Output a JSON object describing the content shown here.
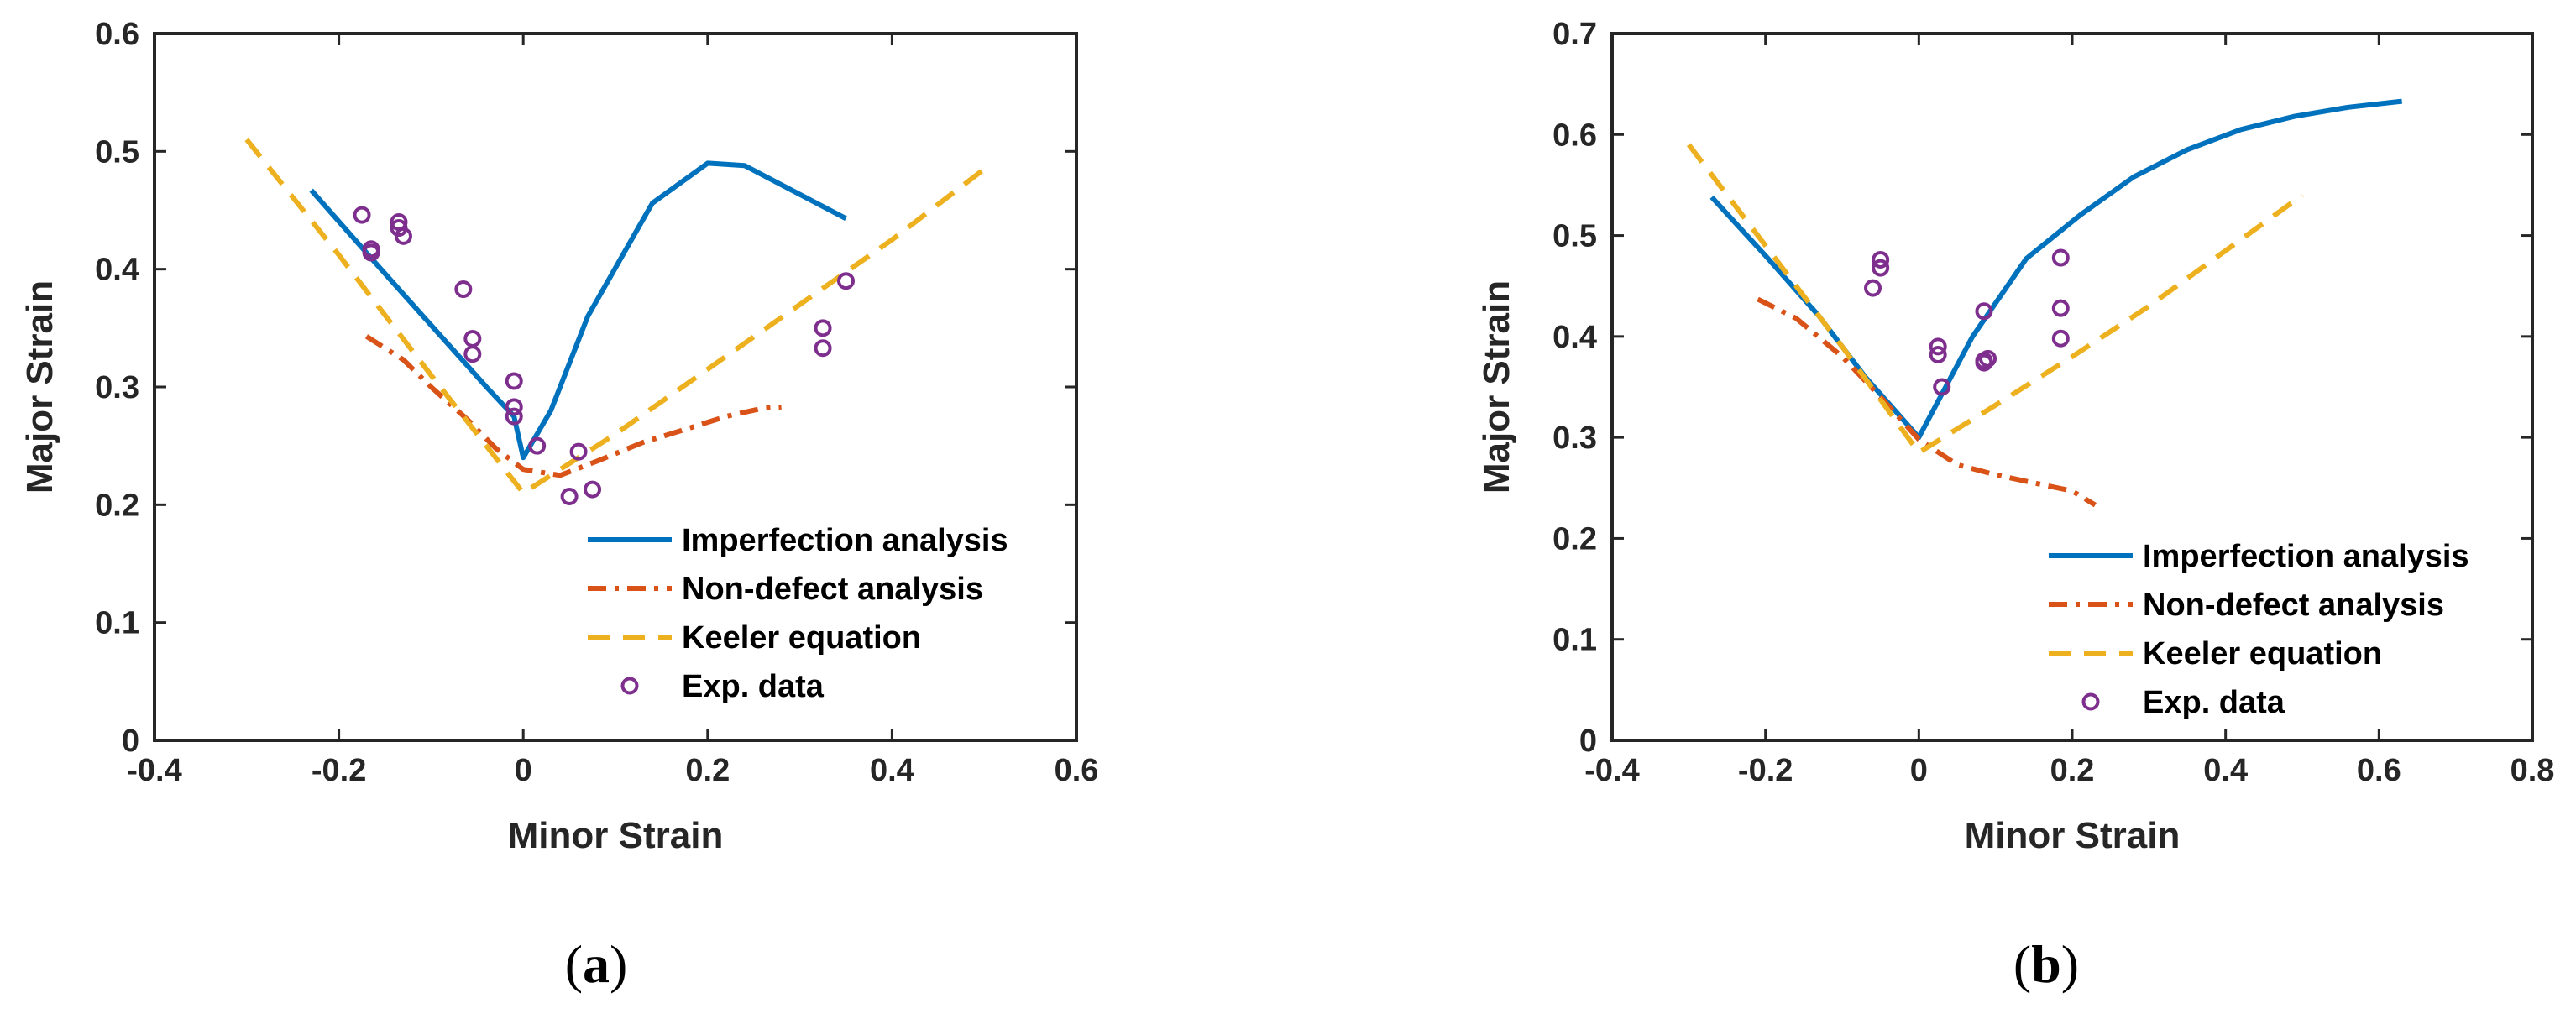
{
  "colors": {
    "imperfection": "#0072BD",
    "non_defect": "#D95319",
    "keeler": "#EDB120",
    "exp": "#7E2F8E",
    "axis": "#262626"
  },
  "chart_data": [
    {
      "type": "line",
      "panel_label": "a",
      "xlabel": "Minor Strain",
      "ylabel": "Major Strain",
      "xlim": [
        -0.4,
        0.6
      ],
      "ylim": [
        0,
        0.6
      ],
      "xticks": [
        -0.4,
        -0.2,
        0,
        0.2,
        0.4,
        0.6
      ],
      "xtick_labels": [
        "-0.4",
        "-0.2",
        "0",
        "0.2",
        "0.4",
        "0.6"
      ],
      "yticks": [
        0,
        0.1,
        0.2,
        0.3,
        0.4,
        0.5,
        0.6
      ],
      "ytick_labels": [
        "0",
        "0.1",
        "0.2",
        "0.3",
        "0.4",
        "0.5",
        "0.6"
      ],
      "legend_position": "bottom-right",
      "series": [
        {
          "name": "Imperfection analysis",
          "style": "solid",
          "color_key": "imperfection",
          "x": [
            -0.23,
            -0.16,
            -0.12,
            -0.08,
            -0.04,
            -0.01,
            0.0,
            0.03,
            0.07,
            0.14,
            0.2,
            0.24,
            0.35
          ],
          "y": [
            0.467,
            0.405,
            0.37,
            0.335,
            0.3,
            0.275,
            0.24,
            0.28,
            0.36,
            0.456,
            0.49,
            0.488,
            0.443
          ]
        },
        {
          "name": "Non-defect analysis",
          "style": "dashdot",
          "color_key": "non_defect",
          "x": [
            -0.17,
            -0.13,
            -0.1,
            -0.06,
            -0.03,
            0.0,
            0.04,
            0.08,
            0.13,
            0.18,
            0.22,
            0.26,
            0.28
          ],
          "y": [
            0.343,
            0.323,
            0.3,
            0.272,
            0.248,
            0.23,
            0.225,
            0.237,
            0.253,
            0.265,
            0.275,
            0.282,
            0.283
          ]
        },
        {
          "name": "Keeler equation",
          "style": "dashed",
          "color_key": "keeler",
          "x": [
            -0.3,
            -0.2,
            -0.1,
            0.0,
            0.1,
            0.2,
            0.3,
            0.4,
            0.5
          ],
          "y": [
            0.51,
            0.412,
            0.31,
            0.21,
            0.26,
            0.315,
            0.37,
            0.425,
            0.485
          ]
        },
        {
          "name": "Exp. data",
          "style": "markers",
          "color_key": "exp",
          "x": [
            -0.175,
            -0.165,
            -0.165,
            -0.135,
            -0.135,
            -0.13,
            -0.065,
            -0.055,
            -0.055,
            -0.01,
            -0.01,
            -0.01,
            0.015,
            0.05,
            0.06,
            0.075,
            0.325,
            0.325,
            0.35
          ],
          "y": [
            0.446,
            0.417,
            0.414,
            0.44,
            0.435,
            0.428,
            0.383,
            0.341,
            0.328,
            0.305,
            0.283,
            0.275,
            0.25,
            0.207,
            0.245,
            0.213,
            0.35,
            0.333,
            0.39
          ]
        }
      ]
    },
    {
      "type": "line",
      "panel_label": "b",
      "xlabel": "Minor Strain",
      "ylabel": "Major Strain",
      "xlim": [
        -0.4,
        0.8
      ],
      "ylim": [
        0,
        0.7
      ],
      "xticks": [
        -0.4,
        -0.2,
        0,
        0.2,
        0.4,
        0.6,
        0.8
      ],
      "xtick_labels": [
        "-0.4",
        "-0.2",
        "0",
        "0.2",
        "0.4",
        "0.6",
        "0.8"
      ],
      "yticks": [
        0,
        0.1,
        0.2,
        0.3,
        0.4,
        0.5,
        0.6,
        0.7
      ],
      "ytick_labels": [
        "0",
        "0.1",
        "0.2",
        "0.3",
        "0.4",
        "0.5",
        "0.6",
        "0.7"
      ],
      "legend_position": "bottom-right",
      "series": [
        {
          "name": "Imperfection analysis",
          "style": "solid",
          "color_key": "imperfection",
          "x": [
            -0.27,
            -0.2,
            -0.13,
            -0.07,
            0.0,
            0.07,
            0.14,
            0.21,
            0.28,
            0.35,
            0.42,
            0.49,
            0.56,
            0.63
          ],
          "y": [
            0.538,
            0.48,
            0.42,
            0.36,
            0.3,
            0.4,
            0.477,
            0.52,
            0.558,
            0.585,
            0.605,
            0.618,
            0.627,
            0.633
          ]
        },
        {
          "name": "Non-defect analysis",
          "style": "dashdot",
          "color_key": "non_defect",
          "x": [
            -0.21,
            -0.16,
            -0.1,
            -0.05,
            0.0,
            0.05,
            0.1,
            0.15,
            0.2,
            0.23
          ],
          "y": [
            0.437,
            0.418,
            0.38,
            0.34,
            0.298,
            0.273,
            0.263,
            0.255,
            0.247,
            0.233
          ]
        },
        {
          "name": "Keeler equation",
          "style": "dashed",
          "color_key": "keeler",
          "x": [
            -0.3,
            -0.2,
            -0.1,
            0.0,
            0.1,
            0.2,
            0.3,
            0.4,
            0.5
          ],
          "y": [
            0.59,
            0.49,
            0.39,
            0.285,
            0.332,
            0.38,
            0.43,
            0.485,
            0.54
          ]
        },
        {
          "name": "Exp. data",
          "style": "markers",
          "color_key": "exp",
          "x": [
            -0.06,
            -0.05,
            -0.05,
            0.025,
            0.025,
            0.03,
            0.085,
            0.085,
            0.09,
            0.085,
            0.185,
            0.185,
            0.185
          ],
          "y": [
            0.448,
            0.468,
            0.476,
            0.39,
            0.382,
            0.35,
            0.425,
            0.374,
            0.378,
            0.376,
            0.478,
            0.428,
            0.398
          ]
        }
      ]
    }
  ]
}
